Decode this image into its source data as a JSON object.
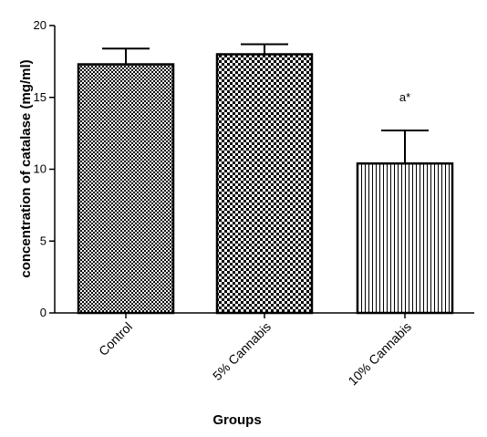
{
  "chart_data": {
    "type": "bar",
    "categories": [
      "Control",
      "5% Cannabis",
      "10% Cannabis"
    ],
    "values": [
      17.3,
      18.0,
      10.4
    ],
    "error_upper": [
      18.4,
      18.7,
      12.7
    ],
    "ylim": [
      0,
      20
    ],
    "yticks": [
      "0",
      "5",
      "10",
      "15",
      "20"
    ],
    "xlabel": "Groups",
    "ylabel": "concentration of catalase (mg/ml)",
    "annotations": [
      {
        "category": "10% Cannabis",
        "text": "a*"
      }
    ],
    "patterns": [
      "fine-checker",
      "checker",
      "vertical-stripes"
    ],
    "grid": false,
    "legend": "none"
  }
}
